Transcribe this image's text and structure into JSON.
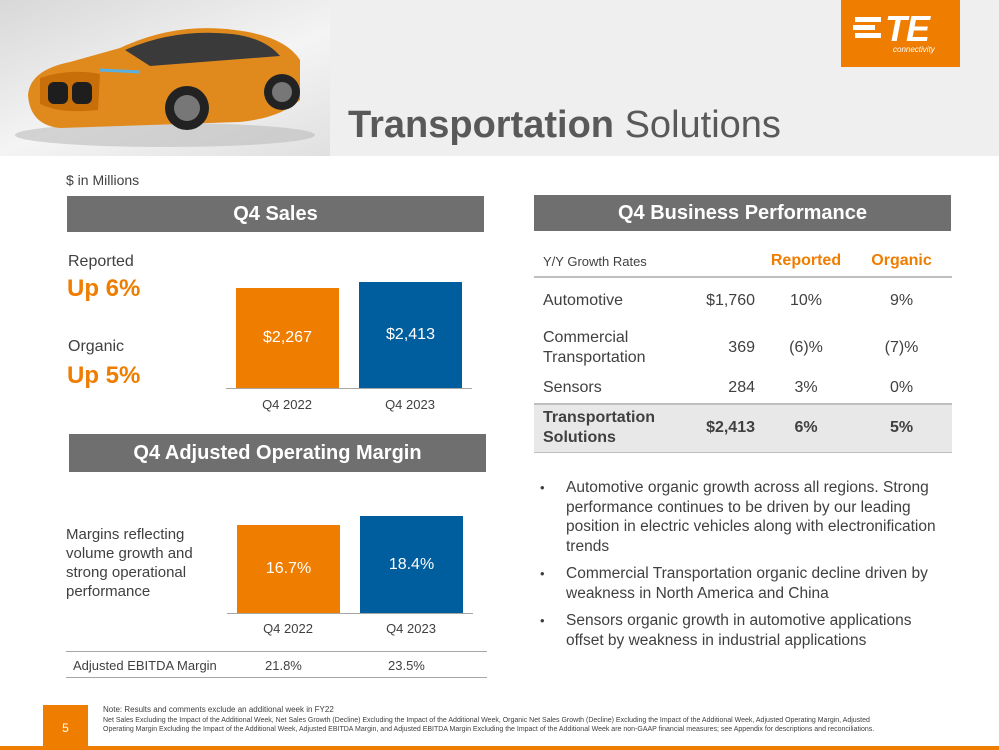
{
  "header": {
    "title_bold": "Transportation",
    "title_rest": " Solutions",
    "logo_text": "TE",
    "logo_subtext": "connectivity"
  },
  "units_label": "$ in Millions",
  "q4_sales": {
    "section_title": "Q4 Sales",
    "reported_label": "Reported",
    "reported_value": "Up 6%",
    "organic_label": "Organic",
    "organic_value": "Up 5%",
    "bars": [
      {
        "category": "Q4 2022",
        "label": "$2,267",
        "value": 2267
      },
      {
        "category": "Q4 2023",
        "label": "$2,413",
        "value": 2413
      }
    ]
  },
  "q4_margin": {
    "section_title": "Q4 Adjusted Operating Margin",
    "note": "Margins reflecting volume growth and strong operational performance",
    "bars": [
      {
        "category": "Q4 2022",
        "label": "16.7%",
        "value": 16.7
      },
      {
        "category": "Q4 2023",
        "label": "18.4%",
        "value": 18.4
      }
    ],
    "ebitda_label": "Adjusted EBITDA Margin",
    "ebitda_2022": "21.8%",
    "ebitda_2023": "23.5%"
  },
  "business_performance": {
    "section_title": "Q4 Business Performance",
    "header_label": "Y/Y Growth Rates",
    "col_reported": "Reported",
    "col_organic": "Organic",
    "rows": [
      {
        "name": "Automotive",
        "sales": "$1,760",
        "reported": "10%",
        "organic": "9%"
      },
      {
        "name": "Commercial Transportation",
        "sales": "369",
        "reported": "(6)%",
        "organic": "(7)%"
      },
      {
        "name": "Sensors",
        "sales": "284",
        "reported": "3%",
        "organic": "0%"
      }
    ],
    "total": {
      "name": "Transportation Solutions",
      "sales": "$2,413",
      "reported": "6%",
      "organic": "5%"
    }
  },
  "bullets": [
    "Automotive organic growth across all regions. Strong performance continues to be driven by our leading position in electric vehicles along with electronification trends",
    "Commercial Transportation organic decline driven by weakness in North America and China",
    "Sensors organic growth in automotive applications offset by weakness in industrial applications"
  ],
  "footer": {
    "page_number": "5",
    "note": "Note: Results and comments exclude an additional week in FY22",
    "legal": "Net Sales Excluding the Impact of the Additional Week, Net Sales Growth (Decline) Excluding the Impact of the Additional Week, Organic Net Sales Growth (Decline) Excluding the Impact of the Additional Week, Adjusted Operating Margin, Adjusted Operating Margin Excluding the Impact of the Additional Week, Adjusted EBITDA Margin, and Adjusted EBITDA Margin Excluding the Impact of the Additional Week are non-GAAP financial measures; see Appendix for descriptions and reconciliations."
  },
  "colors": {
    "accent": "#ee7d00",
    "blue": "#005e9e",
    "section_bar": "#6f6f6f"
  },
  "chart_data": [
    {
      "type": "bar",
      "title": "Q4 Sales",
      "categories": [
        "Q4 2022",
        "Q4 2023"
      ],
      "values": [
        2267,
        2413
      ],
      "data_labels": [
        "$2,267",
        "$2,413"
      ],
      "ylabel": "$ in Millions"
    },
    {
      "type": "bar",
      "title": "Q4 Adjusted Operating Margin",
      "categories": [
        "Q4 2022",
        "Q4 2023"
      ],
      "values": [
        16.7,
        18.4
      ],
      "data_labels": [
        "16.7%",
        "18.4%"
      ]
    }
  ]
}
